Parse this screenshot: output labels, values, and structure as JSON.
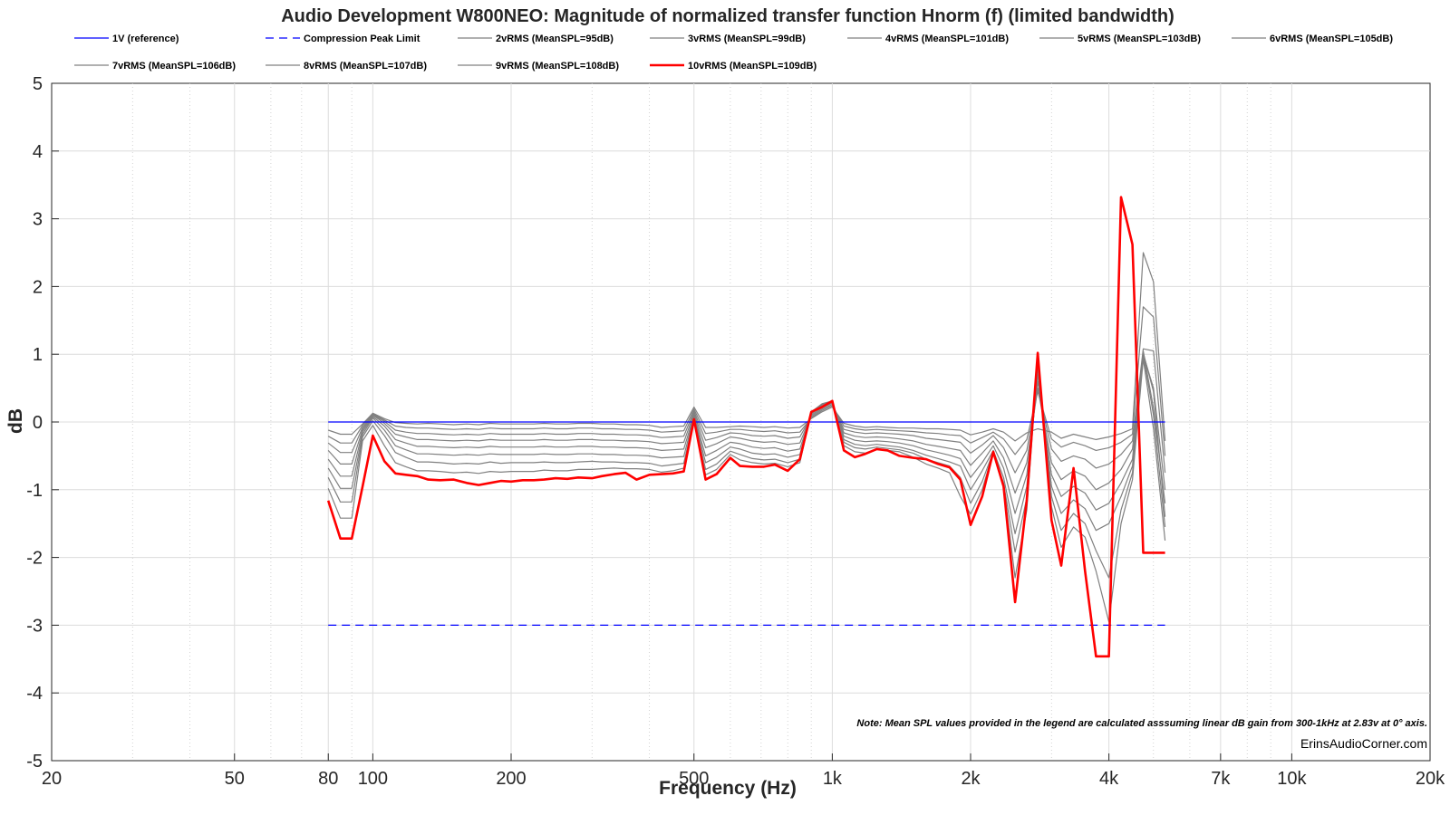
{
  "chart_data": {
    "type": "line",
    "title": "Audio Development W800NEO: Magnitude of normalized transfer function Hnorm (f) (limited bandwidth)",
    "xlabel": "Frequency (Hz)",
    "ylabel": "dB",
    "xscale": "log",
    "xlim": [
      20,
      20000
    ],
    "ylim": [
      -5,
      5
    ],
    "grid": true,
    "legend_position": "top",
    "x_ticks": [
      20,
      50,
      80,
      100,
      200,
      500,
      1000,
      2000,
      4000,
      7000,
      10000,
      20000
    ],
    "x_tick_labels": [
      "20",
      "50",
      "80",
      "100",
      "200",
      "500",
      "1k",
      "2k",
      "4k",
      "7k",
      "10k",
      "20k"
    ],
    "y_ticks": [
      5,
      4,
      3,
      2,
      1,
      0,
      -1,
      -2,
      -3,
      -4,
      -5
    ],
    "y_tick_labels": [
      "5",
      "4",
      "3",
      "2",
      "1",
      "0",
      "-1",
      "-2",
      "-3",
      "-4",
      "-5"
    ],
    "note": "Note: Mean SPL values provided in the legend are calculated asssuming linear dB gain from 300-1kHz at 2.83v at 0° axis.",
    "watermark": "ErinsAudioCorner.com",
    "x": [
      80,
      85,
      90,
      95,
      100,
      106,
      112,
      118,
      125,
      132,
      140,
      150,
      160,
      170,
      180,
      190,
      200,
      212,
      224,
      236,
      250,
      265,
      280,
      300,
      315,
      335,
      355,
      375,
      400,
      425,
      450,
      475,
      500,
      530,
      560,
      600,
      630,
      670,
      710,
      750,
      800,
      850,
      900,
      950,
      1000,
      1060,
      1120,
      1180,
      1250,
      1320,
      1400,
      1500,
      1600,
      1700,
      1800,
      1900,
      2000,
      2120,
      2240,
      2360,
      2500,
      2650,
      2800,
      3000,
      3150,
      3350,
      3550,
      3750,
      4000,
      4250,
      4500,
      4750,
      5000,
      5300
    ],
    "series": [
      {
        "name": "1V (reference)",
        "color": "#0000ff",
        "style": "solid",
        "width": 1.2,
        "values": [
          0,
          0,
          0,
          0,
          0,
          0,
          0,
          0,
          0,
          0,
          0,
          0,
          0,
          0,
          0,
          0,
          0,
          0,
          0,
          0,
          0,
          0,
          0,
          0,
          0,
          0,
          0,
          0,
          0,
          0,
          0,
          0,
          0,
          0,
          0,
          0,
          0,
          0,
          0,
          0,
          0,
          0,
          0,
          0,
          0,
          0,
          0,
          0,
          0,
          0,
          0,
          0,
          0,
          0,
          0,
          0,
          0,
          0,
          0,
          0,
          0,
          0,
          0,
          0,
          0,
          0,
          0,
          0,
          0,
          0,
          0,
          0,
          0,
          0
        ]
      },
      {
        "name": "Compression Peak Limit",
        "color": "#0000ff",
        "style": "dashed",
        "width": 1.2,
        "values": [
          -3,
          -3,
          -3,
          -3,
          -3,
          -3,
          -3,
          -3,
          -3,
          -3,
          -3,
          -3,
          -3,
          -3,
          -3,
          -3,
          -3,
          -3,
          -3,
          -3,
          -3,
          -3,
          -3,
          -3,
          -3,
          -3,
          -3,
          -3,
          -3,
          -3,
          -3,
          -3,
          -3,
          -3,
          -3,
          -3,
          -3,
          -3,
          -3,
          -3,
          -3,
          -3,
          -3,
          -3,
          -3,
          -3,
          -3,
          -3,
          -3,
          -3,
          -3,
          -3,
          -3,
          -3,
          -3,
          -3,
          -3,
          -3,
          -3,
          -3,
          -3,
          -3,
          -3,
          -3,
          -3,
          -3,
          -3,
          -3,
          -3,
          -3,
          -3,
          -3,
          -3,
          -3
        ]
      },
      {
        "name": "2vRMS (MeanSPL=95dB)",
        "color": "#808080",
        "style": "solid",
        "width": 1.2,
        "values": [
          -0.12,
          -0.18,
          -0.18,
          -0.03,
          0.13,
          0.05,
          -0.01,
          -0.02,
          -0.03,
          -0.02,
          -0.03,
          -0.04,
          -0.03,
          -0.04,
          -0.02,
          -0.03,
          -0.03,
          -0.03,
          -0.03,
          -0.02,
          -0.03,
          -0.03,
          -0.02,
          -0.02,
          -0.03,
          -0.03,
          -0.04,
          -0.04,
          -0.05,
          -0.08,
          -0.07,
          -0.06,
          0.22,
          -0.08,
          -0.08,
          -0.07,
          -0.06,
          -0.07,
          -0.08,
          -0.07,
          -0.09,
          -0.08,
          0.05,
          0.15,
          0.22,
          -0.02,
          -0.06,
          -0.08,
          -0.07,
          -0.08,
          -0.09,
          -0.09,
          -0.1,
          -0.1,
          -0.11,
          -0.12,
          -0.19,
          -0.15,
          -0.1,
          -0.15,
          -0.28,
          -0.16,
          -0.1,
          -0.15,
          -0.24,
          -0.18,
          -0.22,
          -0.26,
          -0.22,
          -0.17,
          -0.1,
          2.5,
          2.07,
          -0.28
        ]
      },
      {
        "name": "3vRMS (MeanSPL=99dB)",
        "color": "#808080",
        "style": "solid",
        "width": 1.2,
        "values": [
          -0.21,
          -0.31,
          -0.31,
          -0.05,
          0.12,
          0.03,
          -0.06,
          -0.08,
          -0.09,
          -0.09,
          -0.1,
          -0.11,
          -0.1,
          -0.11,
          -0.09,
          -0.1,
          -0.1,
          -0.1,
          -0.1,
          -0.09,
          -0.1,
          -0.1,
          -0.09,
          -0.09,
          -0.1,
          -0.1,
          -0.11,
          -0.11,
          -0.12,
          -0.15,
          -0.14,
          -0.13,
          0.19,
          -0.17,
          -0.15,
          -0.11,
          -0.11,
          -0.13,
          -0.14,
          -0.13,
          -0.16,
          -0.15,
          0.06,
          0.17,
          0.24,
          -0.06,
          -0.1,
          -0.12,
          -0.11,
          -0.12,
          -0.13,
          -0.14,
          -0.16,
          -0.17,
          -0.19,
          -0.2,
          -0.31,
          -0.23,
          -0.15,
          -0.25,
          -0.48,
          -0.26,
          0.45,
          -0.25,
          -0.37,
          -0.3,
          -0.35,
          -0.42,
          -0.38,
          -0.3,
          -0.18,
          1.7,
          1.55,
          -0.5
        ]
      },
      {
        "name": "4vRMS (MeanSPL=101dB)",
        "color": "#808080",
        "style": "solid",
        "width": 1.2,
        "values": [
          -0.31,
          -0.45,
          -0.45,
          -0.08,
          0.11,
          0.01,
          -0.12,
          -0.15,
          -0.17,
          -0.17,
          -0.18,
          -0.19,
          -0.18,
          -0.19,
          -0.17,
          -0.18,
          -0.18,
          -0.18,
          -0.18,
          -0.17,
          -0.18,
          -0.18,
          -0.17,
          -0.17,
          -0.18,
          -0.18,
          -0.19,
          -0.19,
          -0.2,
          -0.23,
          -0.22,
          -0.21,
          0.16,
          -0.27,
          -0.23,
          -0.16,
          -0.17,
          -0.2,
          -0.21,
          -0.2,
          -0.24,
          -0.22,
          0.08,
          0.19,
          0.26,
          -0.11,
          -0.15,
          -0.17,
          -0.16,
          -0.17,
          -0.18,
          -0.2,
          -0.24,
          -0.26,
          -0.28,
          -0.3,
          -0.46,
          -0.34,
          -0.2,
          -0.38,
          -0.75,
          -0.42,
          0.48,
          -0.4,
          -0.58,
          -0.5,
          -0.55,
          -0.68,
          -0.62,
          -0.48,
          -0.28,
          1.08,
          1.05,
          -0.75
        ]
      },
      {
        "name": "5vRMS (MeanSPL=103dB)",
        "color": "#808080",
        "style": "solid",
        "width": 1.2,
        "values": [
          -0.42,
          -0.62,
          -0.62,
          -0.11,
          0.1,
          -0.02,
          -0.18,
          -0.22,
          -0.26,
          -0.26,
          -0.27,
          -0.28,
          -0.27,
          -0.28,
          -0.26,
          -0.27,
          -0.27,
          -0.27,
          -0.27,
          -0.26,
          -0.27,
          -0.27,
          -0.26,
          -0.26,
          -0.27,
          -0.27,
          -0.28,
          -0.28,
          -0.29,
          -0.32,
          -0.31,
          -0.3,
          0.13,
          -0.38,
          -0.32,
          -0.22,
          -0.24,
          -0.28,
          -0.3,
          -0.29,
          -0.33,
          -0.31,
          0.1,
          0.21,
          0.28,
          -0.16,
          -0.21,
          -0.23,
          -0.22,
          -0.23,
          -0.25,
          -0.28,
          -0.33,
          -0.36,
          -0.39,
          -0.42,
          -0.64,
          -0.46,
          -0.28,
          -0.53,
          -1.05,
          -0.6,
          0.5,
          -0.6,
          -0.85,
          -0.72,
          -0.8,
          -1.0,
          -0.9,
          -0.7,
          -0.4,
          1.0,
          0.5,
          -1.0
        ]
      },
      {
        "name": "6vRMS (MeanSPL=105dB)",
        "color": "#808080",
        "style": "solid",
        "width": 1.2,
        "values": [
          -0.55,
          -0.8,
          -0.8,
          -0.14,
          0.08,
          -0.06,
          -0.26,
          -0.31,
          -0.36,
          -0.36,
          -0.37,
          -0.38,
          -0.37,
          -0.38,
          -0.36,
          -0.37,
          -0.37,
          -0.37,
          -0.37,
          -0.36,
          -0.37,
          -0.37,
          -0.36,
          -0.36,
          -0.37,
          -0.37,
          -0.38,
          -0.38,
          -0.39,
          -0.42,
          -0.41,
          -0.4,
          0.1,
          -0.5,
          -0.42,
          -0.3,
          -0.32,
          -0.37,
          -0.39,
          -0.38,
          -0.43,
          -0.4,
          0.12,
          0.23,
          0.29,
          -0.21,
          -0.27,
          -0.29,
          -0.28,
          -0.29,
          -0.31,
          -0.35,
          -0.41,
          -0.45,
          -0.49,
          -0.54,
          -0.82,
          -0.6,
          -0.35,
          -0.68,
          -1.35,
          -0.78,
          0.6,
          -0.78,
          -1.1,
          -0.95,
          -1.05,
          -1.3,
          -1.2,
          -0.9,
          -0.55,
          1.05,
          0.2,
          -1.2
        ]
      },
      {
        "name": "7vRMS (MeanSPL=106dB)",
        "color": "#808080",
        "style": "solid",
        "width": 1.2,
        "values": [
          -0.68,
          -0.98,
          -0.98,
          -0.18,
          0.06,
          -0.12,
          -0.35,
          -0.41,
          -0.47,
          -0.47,
          -0.48,
          -0.49,
          -0.48,
          -0.49,
          -0.47,
          -0.48,
          -0.48,
          -0.48,
          -0.48,
          -0.47,
          -0.48,
          -0.48,
          -0.47,
          -0.47,
          -0.48,
          -0.48,
          -0.49,
          -0.49,
          -0.5,
          -0.53,
          -0.52,
          -0.51,
          0.08,
          -0.6,
          -0.52,
          -0.37,
          -0.4,
          -0.46,
          -0.48,
          -0.47,
          -0.52,
          -0.48,
          0.13,
          0.25,
          0.3,
          -0.26,
          -0.33,
          -0.35,
          -0.33,
          -0.35,
          -0.37,
          -0.42,
          -0.49,
          -0.54,
          -0.59,
          -0.65,
          -1.0,
          -0.72,
          -0.42,
          -0.82,
          -1.65,
          -0.95,
          0.7,
          -0.95,
          -1.35,
          -1.15,
          -1.28,
          -1.6,
          -1.5,
          -1.1,
          -0.65,
          1.02,
          0.45,
          -1.4
        ]
      },
      {
        "name": "8vRMS (MeanSPL=107dB)",
        "color": "#808080",
        "style": "solid",
        "width": 1.2,
        "values": [
          -0.82,
          -1.18,
          -1.18,
          -0.22,
          0.02,
          -0.2,
          -0.45,
          -0.52,
          -0.59,
          -0.59,
          -0.6,
          -0.62,
          -0.61,
          -0.62,
          -0.59,
          -0.61,
          -0.6,
          -0.6,
          -0.6,
          -0.59,
          -0.6,
          -0.6,
          -0.59,
          -0.58,
          -0.59,
          -0.59,
          -0.6,
          -0.6,
          -0.61,
          -0.65,
          -0.63,
          -0.61,
          0.05,
          -0.7,
          -0.62,
          -0.43,
          -0.48,
          -0.54,
          -0.56,
          -0.55,
          -0.6,
          -0.55,
          0.14,
          0.26,
          0.31,
          -0.3,
          -0.38,
          -0.4,
          -0.37,
          -0.39,
          -0.41,
          -0.46,
          -0.55,
          -0.6,
          -0.65,
          -0.82,
          -1.2,
          -0.88,
          -0.44,
          -0.9,
          -1.92,
          -1.12,
          0.8,
          -1.1,
          -1.6,
          -1.35,
          -1.5,
          -1.9,
          -2.3,
          -1.3,
          -0.75,
          1.0,
          0.1,
          -1.55
        ]
      },
      {
        "name": "9vRMS (MeanSPL=108dB)",
        "color": "#808080",
        "style": "solid",
        "width": 1.2,
        "values": [
          -0.98,
          -1.42,
          -1.42,
          -0.28,
          -0.05,
          -0.35,
          -0.6,
          -0.66,
          -0.72,
          -0.72,
          -0.73,
          -0.75,
          -0.74,
          -0.76,
          -0.73,
          -0.74,
          -0.73,
          -0.73,
          -0.73,
          -0.71,
          -0.72,
          -0.72,
          -0.7,
          -0.7,
          -0.69,
          -0.68,
          -0.69,
          -0.69,
          -0.7,
          -0.74,
          -0.72,
          -0.68,
          0.02,
          -0.78,
          -0.7,
          -0.48,
          -0.56,
          -0.6,
          -0.62,
          -0.61,
          -0.66,
          -0.6,
          0.15,
          0.27,
          0.31,
          -0.35,
          -0.44,
          -0.46,
          -0.4,
          -0.42,
          -0.44,
          -0.52,
          -0.62,
          -0.68,
          -0.75,
          -1.1,
          -1.36,
          -1.0,
          -0.44,
          -0.92,
          -2.3,
          -1.3,
          0.9,
          -1.25,
          -1.85,
          -1.55,
          -1.7,
          -2.2,
          -2.95,
          -1.5,
          -0.85,
          0.93,
          -0.1,
          -1.75
        ]
      },
      {
        "name": "10vRMS (MeanSPL=109dB)",
        "color": "#ff0000",
        "style": "solid",
        "width": 2.6,
        "values": [
          -1.16,
          -1.72,
          -1.72,
          -0.95,
          -0.2,
          -0.58,
          -0.76,
          -0.78,
          -0.8,
          -0.85,
          -0.86,
          -0.85,
          -0.9,
          -0.93,
          -0.9,
          -0.87,
          -0.88,
          -0.86,
          -0.86,
          -0.85,
          -0.83,
          -0.84,
          -0.82,
          -0.83,
          -0.8,
          -0.77,
          -0.75,
          -0.85,
          -0.78,
          -0.77,
          -0.76,
          -0.73,
          0.04,
          -0.85,
          -0.77,
          -0.53,
          -0.65,
          -0.66,
          -0.66,
          -0.63,
          -0.72,
          -0.55,
          0.15,
          0.22,
          0.31,
          -0.42,
          -0.52,
          -0.47,
          -0.4,
          -0.42,
          -0.5,
          -0.53,
          -0.55,
          -0.62,
          -0.67,
          -0.85,
          -1.52,
          -1.1,
          -0.44,
          -0.95,
          -2.66,
          -1.15,
          1.02,
          -1.45,
          -2.12,
          -0.68,
          -2.2,
          -3.46,
          -3.46,
          3.32,
          2.62,
          -1.93,
          -1.93,
          -1.93
        ]
      }
    ]
  }
}
